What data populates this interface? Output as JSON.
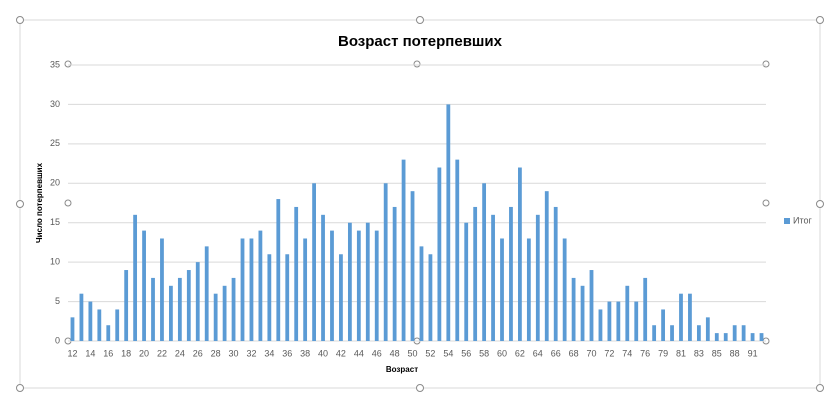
{
  "chart_data": {
    "type": "bar",
    "title": "Возраст потерпевших",
    "x_label": "Возраст",
    "y_label": "Число потерпевших",
    "categories": [
      "12",
      null,
      "14",
      null,
      "16",
      null,
      "18",
      null,
      "20",
      null,
      "22",
      null,
      "24",
      null,
      "26",
      null,
      "28",
      null,
      "30",
      null,
      "32",
      null,
      "34",
      null,
      "36",
      null,
      "38",
      null,
      "40",
      null,
      "42",
      null,
      "44",
      null,
      "46",
      null,
      "48",
      null,
      "50",
      null,
      "52",
      null,
      "54",
      null,
      "56",
      null,
      "58",
      null,
      "60",
      null,
      "62",
      null,
      "64",
      null,
      "66",
      null,
      "68",
      null,
      "70",
      null,
      "72",
      null,
      "74",
      null,
      "76",
      null,
      "79",
      null,
      "81",
      null,
      "83",
      null,
      "85",
      null,
      "88",
      null,
      "91",
      null
    ],
    "series": [
      {
        "name": "Итог",
        "color": "#5b9bd5",
        "values": [
          3,
          6,
          5,
          4,
          2,
          4,
          9,
          16,
          14,
          8,
          13,
          7,
          8,
          9,
          10,
          12,
          6,
          7,
          8,
          13,
          13,
          14,
          11,
          18,
          11,
          17,
          13,
          20,
          16,
          14,
          11,
          15,
          14,
          15,
          14,
          20,
          17,
          23,
          19,
          12,
          11,
          22,
          30,
          23,
          15,
          17,
          20,
          16,
          13,
          17,
          22,
          13,
          16,
          19,
          17,
          13,
          8,
          7,
          9,
          4,
          5,
          5,
          7,
          5,
          8,
          2,
          4,
          2,
          6,
          6,
          2,
          3,
          1,
          1,
          2,
          2,
          1,
          1
        ]
      }
    ],
    "ylim": [
      0,
      35
    ],
    "yticks": [
      0,
      5,
      10,
      15,
      20,
      25,
      30,
      35
    ],
    "grid": true,
    "legend": "right"
  }
}
